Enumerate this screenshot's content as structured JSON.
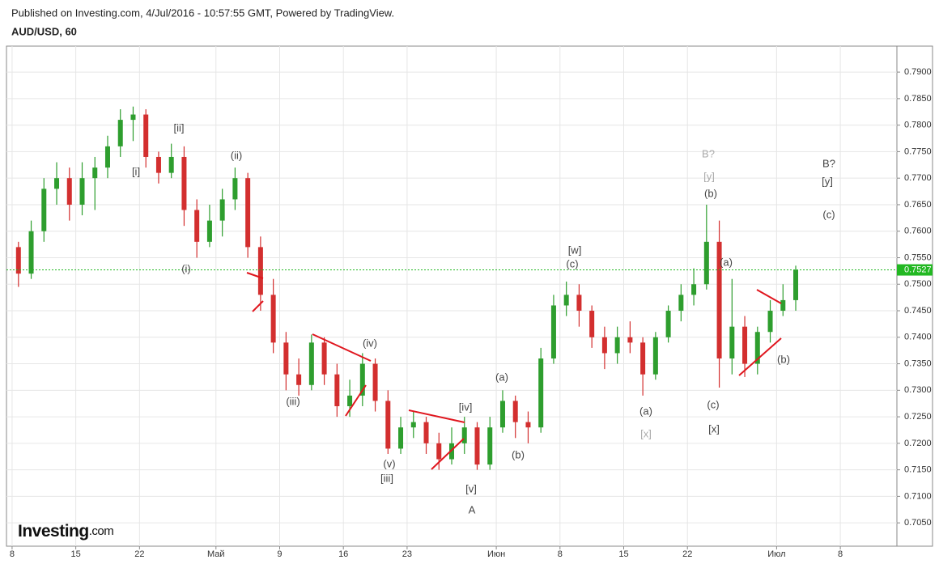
{
  "header": {
    "published": "Published on Investing.com, 4/Jul/2016 - 10:57:55 GMT, Powered by TradingView.",
    "symbol": "AUD/USD, 60"
  },
  "logo": {
    "name": "Investing",
    "suffix": ".com"
  },
  "chart_data": {
    "type": "candlestick",
    "x": [
      0.5,
      1.5,
      2.5,
      3.5,
      4.5,
      5.5,
      6.5,
      7.5,
      8.5,
      9.5,
      10.5,
      11.5,
      12.5,
      13.5,
      14.5,
      15.5,
      16.5,
      17.5,
      18.5,
      19.5,
      20.5,
      21.5,
      22.5,
      23.5,
      24.5,
      25.5,
      26.5,
      27.5,
      28.5,
      29.5,
      30.5,
      31.5,
      32.5,
      33.5,
      34.5,
      35.5,
      36.5,
      37.5,
      38.5,
      39.5,
      40.5,
      41.5,
      42.5,
      43.5,
      44.5,
      45.5,
      46.5,
      47.5,
      48.5,
      49.5,
      50.5,
      51.5,
      52.5,
      53.5,
      54.5,
      55.5,
      56.5,
      57.5,
      58.5,
      59.5,
      60.5,
      61.5
    ],
    "open": [
      0.757,
      0.752,
      0.76,
      0.768,
      0.77,
      0.765,
      0.77,
      0.772,
      0.776,
      0.781,
      0.782,
      0.774,
      0.771,
      0.774,
      0.764,
      0.758,
      0.762,
      0.766,
      0.77,
      0.757,
      0.748,
      0.739,
      0.733,
      0.731,
      0.739,
      0.733,
      0.727,
      0.729,
      0.735,
      0.728,
      0.719,
      0.723,
      0.724,
      0.72,
      0.717,
      0.72,
      0.723,
      0.716,
      0.723,
      0.728,
      0.724,
      0.723,
      0.736,
      0.746,
      0.748,
      0.745,
      0.74,
      0.737,
      0.74,
      0.739,
      0.733,
      0.74,
      0.745,
      0.748,
      0.75,
      0.758,
      0.736,
      0.742,
      0.735,
      0.741,
      0.745,
      0.747
    ],
    "high": [
      0.758,
      0.762,
      0.77,
      0.773,
      0.772,
      0.773,
      0.774,
      0.778,
      0.783,
      0.7835,
      0.783,
      0.775,
      0.7765,
      0.776,
      0.766,
      0.765,
      0.768,
      0.772,
      0.771,
      0.759,
      0.751,
      0.741,
      0.736,
      0.7405,
      0.74,
      0.735,
      0.732,
      0.737,
      0.736,
      0.73,
      0.725,
      0.726,
      0.725,
      0.722,
      0.723,
      0.725,
      0.724,
      0.725,
      0.73,
      0.729,
      0.726,
      0.738,
      0.748,
      0.7505,
      0.75,
      0.746,
      0.742,
      0.742,
      0.743,
      0.74,
      0.741,
      0.746,
      0.75,
      0.753,
      0.765,
      0.762,
      0.751,
      0.744,
      0.742,
      0.747,
      0.75,
      0.7535
    ],
    "low": [
      0.7495,
      0.751,
      0.758,
      0.765,
      0.762,
      0.763,
      0.764,
      0.77,
      0.774,
      0.777,
      0.772,
      0.769,
      0.77,
      0.761,
      0.755,
      0.757,
      0.759,
      0.764,
      0.755,
      0.745,
      0.737,
      0.73,
      0.729,
      0.73,
      0.731,
      0.725,
      0.725,
      0.727,
      0.726,
      0.718,
      0.718,
      0.721,
      0.718,
      0.715,
      0.716,
      0.718,
      0.715,
      0.715,
      0.722,
      0.721,
      0.72,
      0.722,
      0.735,
      0.744,
      0.742,
      0.738,
      0.734,
      0.735,
      0.737,
      0.729,
      0.732,
      0.739,
      0.743,
      0.746,
      0.749,
      0.7305,
      0.733,
      0.7325,
      0.733,
      0.739,
      0.744,
      0.745
    ],
    "close": [
      0.752,
      0.76,
      0.768,
      0.77,
      0.765,
      0.77,
      0.772,
      0.776,
      0.781,
      0.782,
      0.774,
      0.771,
      0.774,
      0.764,
      0.758,
      0.762,
      0.766,
      0.77,
      0.757,
      0.748,
      0.739,
      0.733,
      0.731,
      0.739,
      0.733,
      0.727,
      0.729,
      0.735,
      0.728,
      0.719,
      0.723,
      0.724,
      0.72,
      0.717,
      0.72,
      0.723,
      0.716,
      0.723,
      0.728,
      0.724,
      0.723,
      0.736,
      0.746,
      0.748,
      0.745,
      0.74,
      0.737,
      0.74,
      0.739,
      0.733,
      0.74,
      0.745,
      0.748,
      0.75,
      0.758,
      0.736,
      0.742,
      0.735,
      0.741,
      0.745,
      0.747,
      0.7527
    ],
    "up_color": "#2e9e2e",
    "down_color": "#d32f2f",
    "last_price": 0.7527,
    "last_color": "#22b822",
    "xlim": [
      -0.44,
      69.44
    ],
    "ylim": [
      0.7006,
      0.7949
    ],
    "xticks": [
      {
        "value": 0,
        "label": "8"
      },
      {
        "value": 5,
        "label": "15"
      },
      {
        "value": 10,
        "label": "22"
      },
      {
        "value": 16,
        "label": "Май"
      },
      {
        "value": 21,
        "label": "9"
      },
      {
        "value": 26,
        "label": "16"
      },
      {
        "value": 31,
        "label": "23"
      },
      {
        "value": 38,
        "label": "Июн"
      },
      {
        "value": 43,
        "label": "8"
      },
      {
        "value": 48,
        "label": "15"
      },
      {
        "value": 53,
        "label": "22"
      },
      {
        "value": 60,
        "label": "Июл"
      },
      {
        "value": 65,
        "label": "8"
      }
    ],
    "yticks": [
      {
        "value": 0.705,
        "label": "0.7050"
      },
      {
        "value": 0.71,
        "label": "0.7100"
      },
      {
        "value": 0.715,
        "label": "0.7150"
      },
      {
        "value": 0.72,
        "label": "0.7200"
      },
      {
        "value": 0.725,
        "label": "0.7250"
      },
      {
        "value": 0.73,
        "label": "0.7300"
      },
      {
        "value": 0.735,
        "label": "0.7350"
      },
      {
        "value": 0.74,
        "label": "0.7400"
      },
      {
        "value": 0.745,
        "label": "0.7450"
      },
      {
        "value": 0.75,
        "label": "0.7500"
      },
      {
        "value": 0.755,
        "label": "0.7550"
      },
      {
        "value": 0.76,
        "label": "0.7600"
      },
      {
        "value": 0.765,
        "label": "0.7650"
      },
      {
        "value": 0.77,
        "label": "0.7700"
      },
      {
        "value": 0.775,
        "label": "0.7750"
      },
      {
        "value": 0.78,
        "label": "0.7800"
      },
      {
        "value": 0.785,
        "label": "0.7850"
      },
      {
        "value": 0.79,
        "label": "0.7900"
      }
    ],
    "grid": true,
    "annotations": [
      "[i]",
      "[ii]",
      "(ii)",
      "(i)",
      "(iii)",
      "(iv)",
      "(v)",
      "[iii]",
      "[iv]",
      "[v]",
      "A",
      "(a)",
      "(b)",
      "[w]",
      "(c)",
      "(a)",
      "[x]",
      "B?",
      "[y]",
      "(b)",
      "(a)",
      "(c)",
      "[x]",
      "(b)",
      "B?",
      "[y]",
      "(c)"
    ]
  }
}
